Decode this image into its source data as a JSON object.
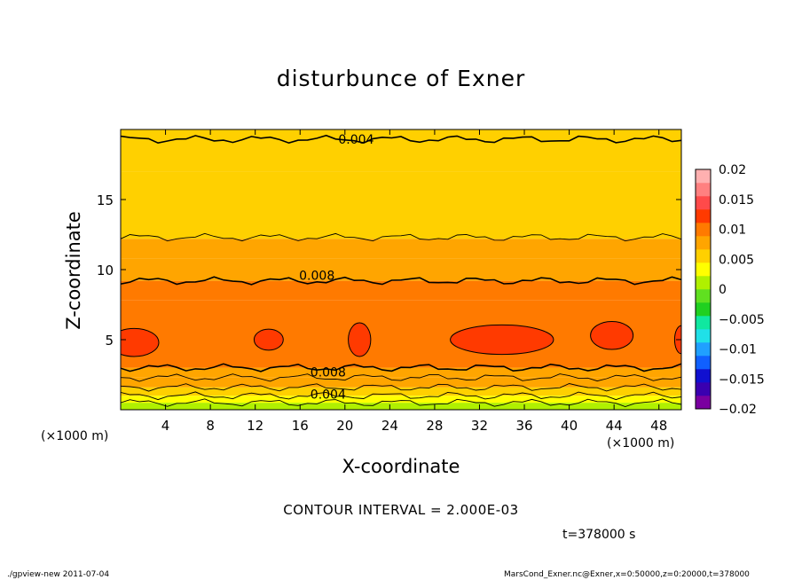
{
  "chart_data": {
    "type": "heatmap",
    "title": "disturbunce of Exner",
    "xlabel": "X-coordinate",
    "ylabel": "Z-coordinate",
    "x_unit_label": "(×1000 m)",
    "x_ticks": [
      "4",
      "8",
      "12",
      "16",
      "20",
      "24",
      "28",
      "32",
      "36",
      "40",
      "44",
      "48"
    ],
    "x_tick_values": [
      4,
      8,
      12,
      16,
      20,
      24,
      28,
      32,
      36,
      40,
      44,
      48
    ],
    "xlim": [
      0,
      50
    ],
    "y_ticks": [
      "5",
      "10",
      "15"
    ],
    "y_tick_values": [
      5,
      10,
      15
    ],
    "ylim": [
      0,
      20
    ],
    "contour_interval_text": "CONTOUR INTERVAL = 2.000E-03",
    "time_text": "t=378000 s",
    "contour_labels": [
      {
        "text": "0.004",
        "x": 21,
        "z": 19.3
      },
      {
        "text": "0.008",
        "x": 17.5,
        "z": 9.6
      },
      {
        "text": "0.008",
        "x": 18.5,
        "z": 2.7
      },
      {
        "text": "0.004",
        "x": 18.5,
        "z": 1.1
      }
    ],
    "bands": [
      {
        "z0": 0,
        "z1": 0.5,
        "value": 0.001
      },
      {
        "z0": 0.5,
        "z1": 1.0,
        "value": 0.003
      },
      {
        "z0": 1.0,
        "z1": 1.6,
        "value": 0.005
      },
      {
        "z0": 1.6,
        "z1": 2.3,
        "value": 0.007
      },
      {
        "z0": 2.3,
        "z1": 3.0,
        "value": 0.0085
      },
      {
        "z0": 3.0,
        "z1": 7.8,
        "value": 0.0105
      },
      {
        "z0": 7.8,
        "z1": 9.2,
        "value": 0.0095
      },
      {
        "z0": 9.2,
        "z1": 10.8,
        "value": 0.0085
      },
      {
        "z0": 10.8,
        "z1": 12.2,
        "value": 0.0075
      },
      {
        "z0": 12.2,
        "z1": 17.0,
        "value": 0.0058
      },
      {
        "z0": 17.0,
        "z1": 20.0,
        "value": 0.0045
      }
    ],
    "highs": [
      {
        "x": 1.2,
        "z": 4.8,
        "rx": 2.2,
        "rz": 1.0
      },
      {
        "x": 13.2,
        "z": 5.0,
        "rx": 1.3,
        "rz": 0.75
      },
      {
        "x": 21.3,
        "z": 5.0,
        "rx": 1.0,
        "rz": 1.2
      },
      {
        "x": 34.0,
        "z": 5.0,
        "rx": 4.6,
        "rz": 1.05
      },
      {
        "x": 43.8,
        "z": 5.3,
        "rx": 1.9,
        "rz": 1.0
      },
      {
        "x": 50.0,
        "z": 5.0,
        "rx": 0.6,
        "rz": 1.0
      }
    ],
    "contour_lines_z": [
      0.5,
      1.0,
      1.6,
      2.3,
      3.0,
      9.2,
      12.3,
      19.3
    ],
    "colorbar": {
      "ticks": [
        "0.02",
        "0.015",
        "0.01",
        "0.005",
        "0",
        "−0.005",
        "−0.01",
        "−0.015",
        "−0.02"
      ],
      "tick_values": [
        0.02,
        0.015,
        0.01,
        0.005,
        0,
        -0.005,
        -0.01,
        -0.015,
        -0.02
      ],
      "range": [
        -0.02,
        0.02
      ],
      "colors": [
        "#7a00a0",
        "#3a00b0",
        "#1010d0",
        "#1060ff",
        "#20a0ff",
        "#20e0e8",
        "#10e8a0",
        "#20d020",
        "#60e020",
        "#b0f000",
        "#ffff00",
        "#ffd000",
        "#ffa500",
        "#ff7a00",
        "#ff3a00",
        "#ff4a4a",
        "#ff8080",
        "#ffb0b0"
      ]
    }
  },
  "footer": {
    "left": "./gpview-new   2011-07-04",
    "right": "MarsCond_Exner.nc@Exner,x=0:50000,z=0:20000,t=378000"
  }
}
